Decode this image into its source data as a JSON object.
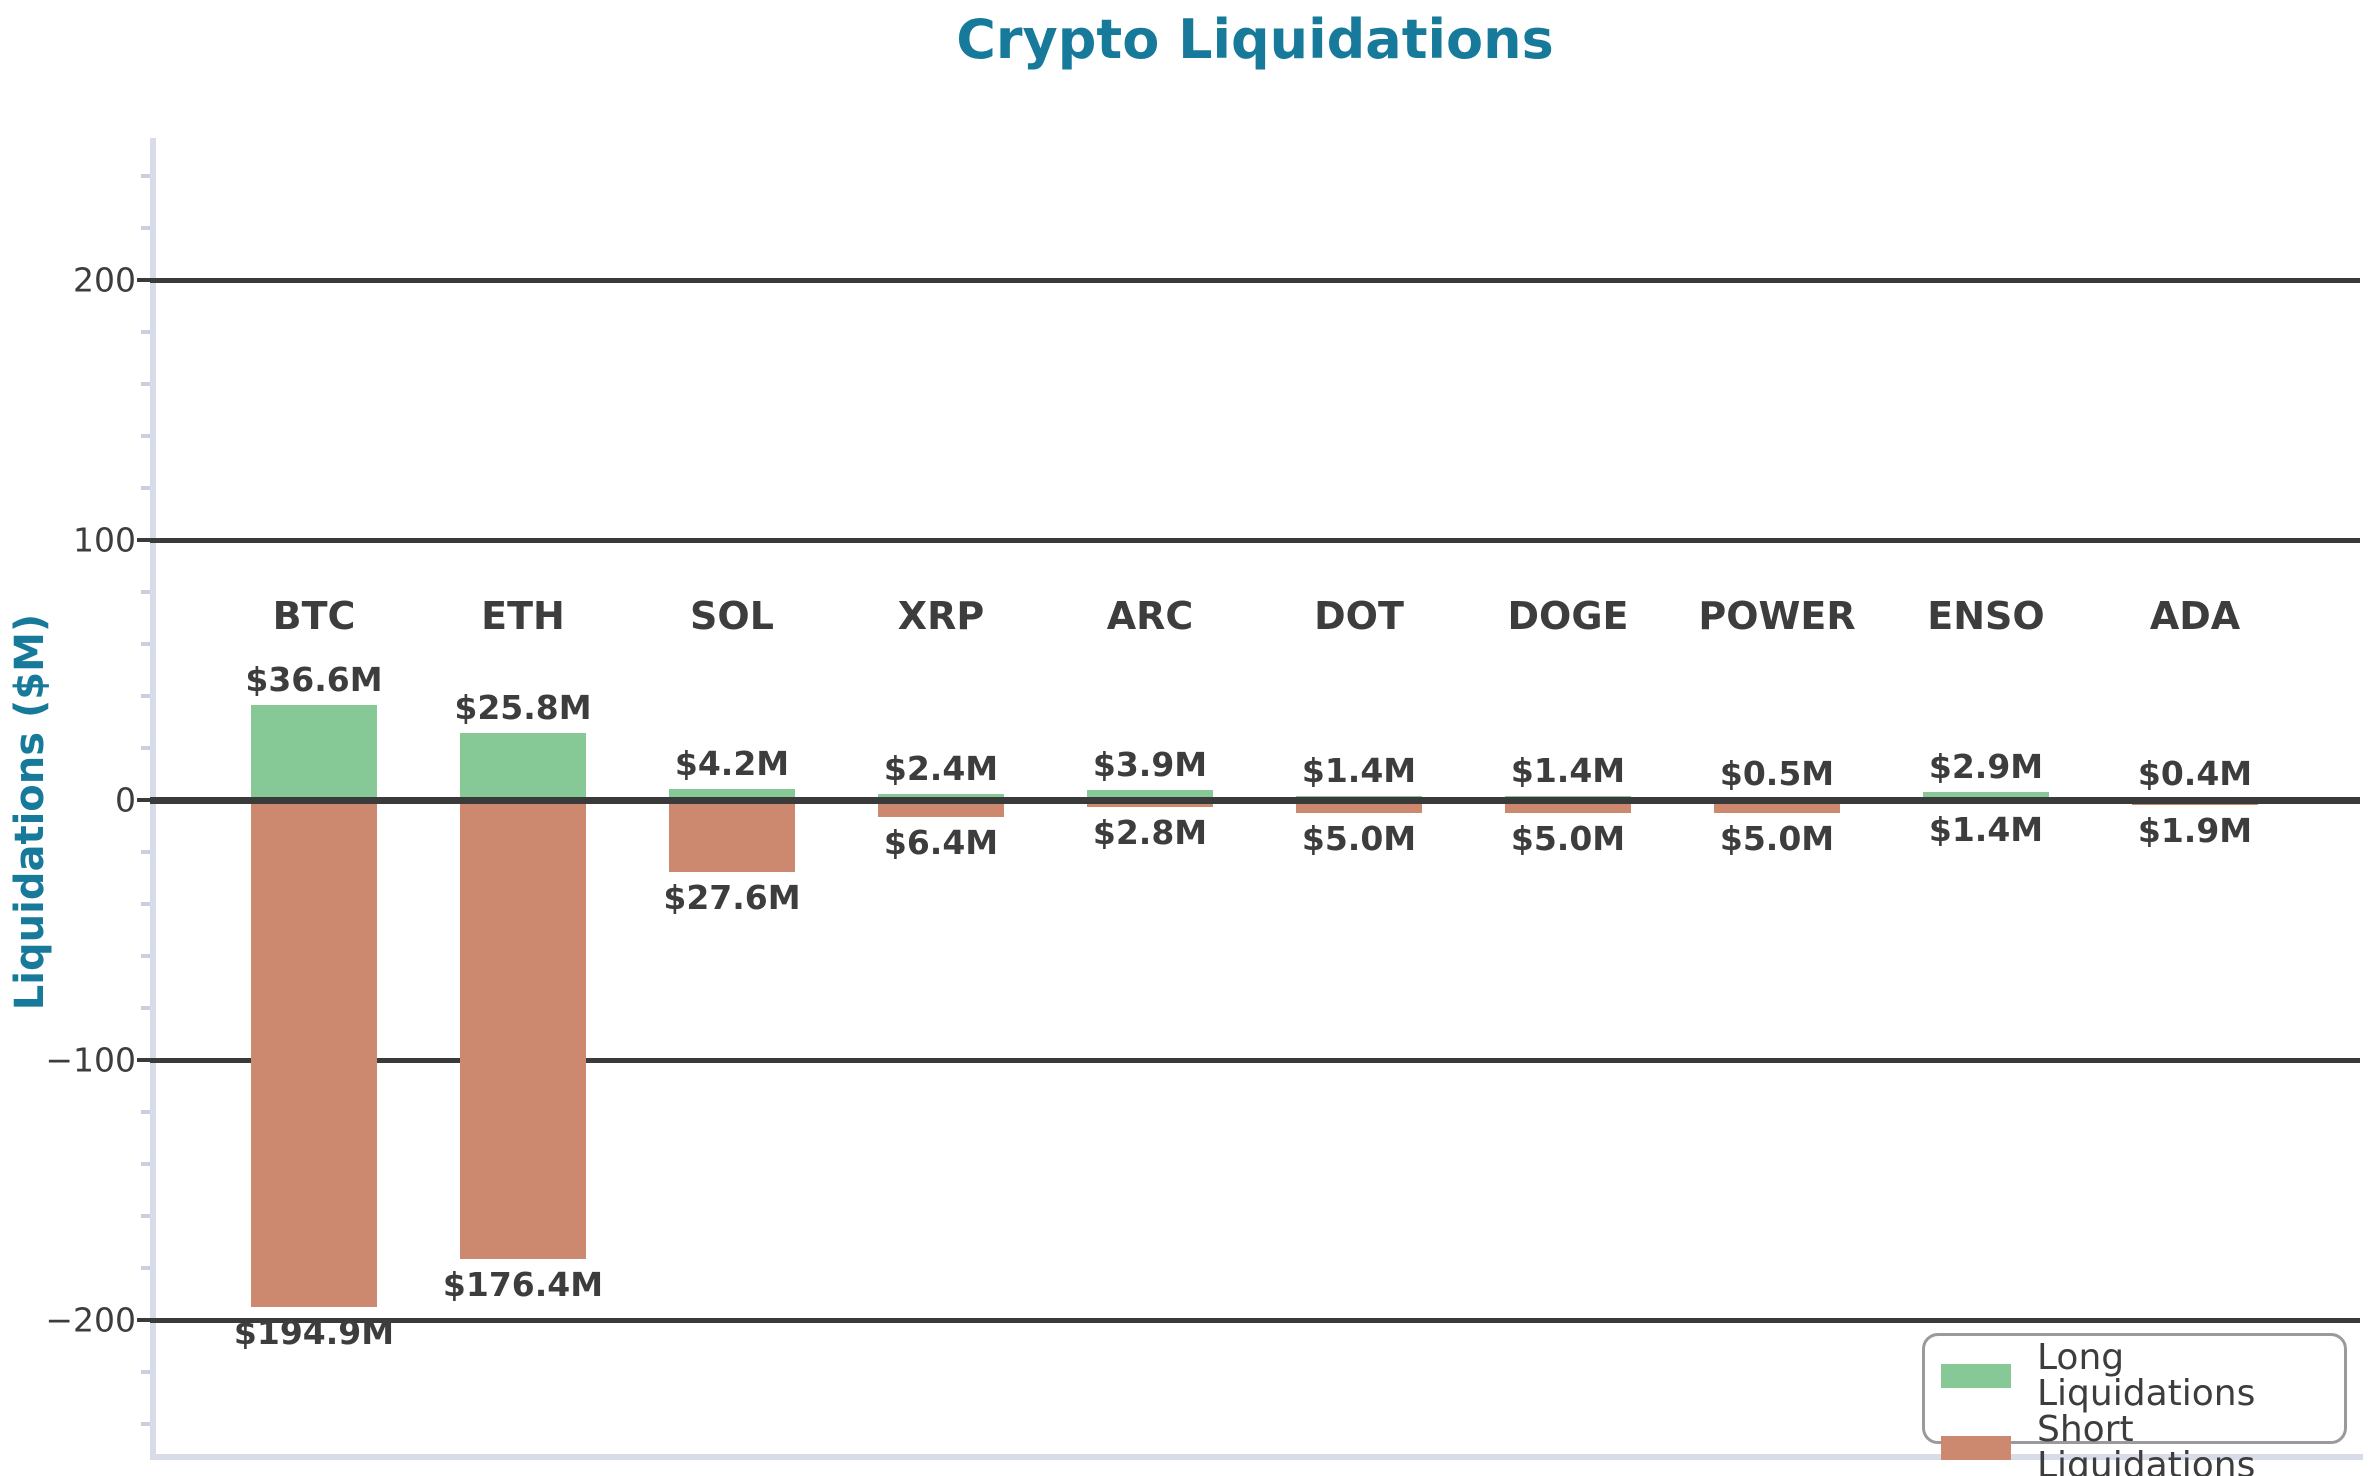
{
  "title": "Crypto Liquidations",
  "colors": {
    "accent_teal": "#177a9a",
    "long_green": "#86c896",
    "short_salmon": "#cd8970",
    "grid_dark": "#3a3a3a",
    "spine_light": "#d8dce9",
    "text_dark": "#3d3d3d",
    "legend_border": "#9a9a9a"
  },
  "chart_data": {
    "type": "bar",
    "title": "Crypto Liquidations",
    "xlabel": "",
    "ylabel": "Liquidations ($M)",
    "categories": [
      "BTC",
      "ETH",
      "SOL",
      "XRP",
      "ARC",
      "DOT",
      "DOGE",
      "POWER",
      "ENSO",
      "ADA"
    ],
    "series": [
      {
        "name": "Long Liquidations",
        "color": "#86c896",
        "direction": "up",
        "values": [
          36.6,
          25.8,
          4.2,
          2.4,
          3.9,
          1.4,
          1.4,
          0.5,
          2.9,
          0.4
        ],
        "labels": [
          "$36.6M",
          "$25.8M",
          "$4.2M",
          "$2.4M",
          "$3.9M",
          "$1.4M",
          "$1.4M",
          "$0.5M",
          "$2.9M",
          "$0.4M"
        ]
      },
      {
        "name": "Short Liquidations",
        "color": "#cd8970",
        "direction": "down",
        "values": [
          194.9,
          176.4,
          27.6,
          6.4,
          2.8,
          5.0,
          5.0,
          5.0,
          1.4,
          1.9
        ],
        "labels": [
          "$194.9M",
          "$176.4M",
          "$27.6M",
          "$6.4M",
          "$2.8M",
          "$5.0M",
          "$5.0M",
          "$5.0M",
          "$1.4M",
          "$1.9M"
        ]
      }
    ],
    "yticks": [
      200,
      100,
      0,
      -100,
      -200
    ],
    "ytick_labels": [
      "200",
      "100",
      "0",
      "−100",
      "−200"
    ],
    "ylim": [
      -254,
      255
    ],
    "minor_tick_step": 20,
    "minor_tick_range": [
      -240,
      240
    ],
    "grid": true,
    "legend_position": "lower right"
  }
}
